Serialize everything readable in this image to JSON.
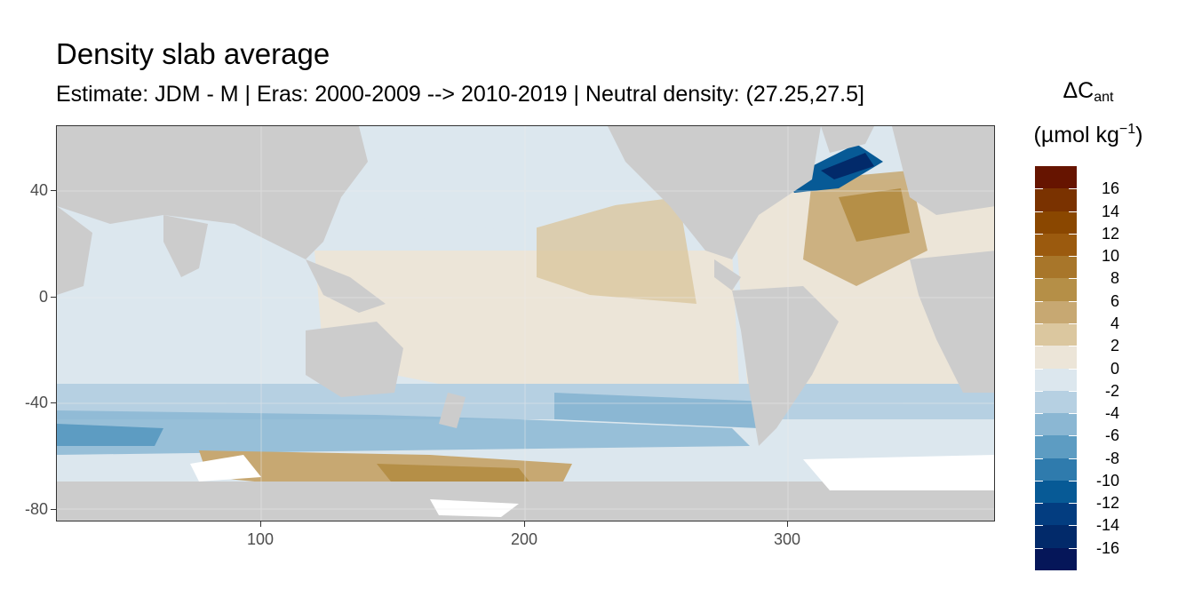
{
  "title": "Density slab average",
  "subtitle": "Estimate: JDM - M | Eras: 2000-2009 --> 2010-2019 | Neutral density: (27.25,27.5]",
  "legend": {
    "title_symbol": "ΔC",
    "title_subscript": "ant",
    "unit_prefix": "(µmol kg",
    "unit_superscript": "−1",
    "unit_suffix": ")",
    "breaks": [
      "16",
      "14",
      "12",
      "10",
      "8",
      "6",
      "4",
      "2",
      "0",
      "-2",
      "-4",
      "-6",
      "-8",
      "-10",
      "-12",
      "-14",
      "-16"
    ],
    "colors": [
      "#661400",
      "#7a3200",
      "#8a4700",
      "#9b5a0e",
      "#a8762a",
      "#b58f47",
      "#c7a872",
      "#dbc79f",
      "#ece5d8",
      "#dce7ee",
      "#b6d0e2",
      "#8bb7d3",
      "#5d9cc2",
      "#2f7bad",
      "#075a96",
      "#033d80",
      "#022a6a",
      "#051659"
    ]
  },
  "axes": {
    "y_ticks": [
      "40",
      "0",
      "-40",
      "-80"
    ],
    "x_ticks": [
      "100",
      "200",
      "300"
    ]
  },
  "chart_data": {
    "type": "heatmap",
    "title": "Density slab average",
    "subtitle": "Estimate: JDM - M | Eras: 2000-2009 --> 2010-2019 | Neutral density: (27.25,27.5]",
    "x_ticks": [
      100,
      200,
      300
    ],
    "y_ticks": [
      40,
      0,
      -40,
      -80
    ],
    "xlim": [
      20,
      380
    ],
    "ylim": [
      -85,
      65
    ],
    "legend_title": "ΔCant (µmol kg−1)",
    "legend_placement": "right",
    "value_range": [
      -18,
      18
    ],
    "land_color": "#cccccc"
  }
}
